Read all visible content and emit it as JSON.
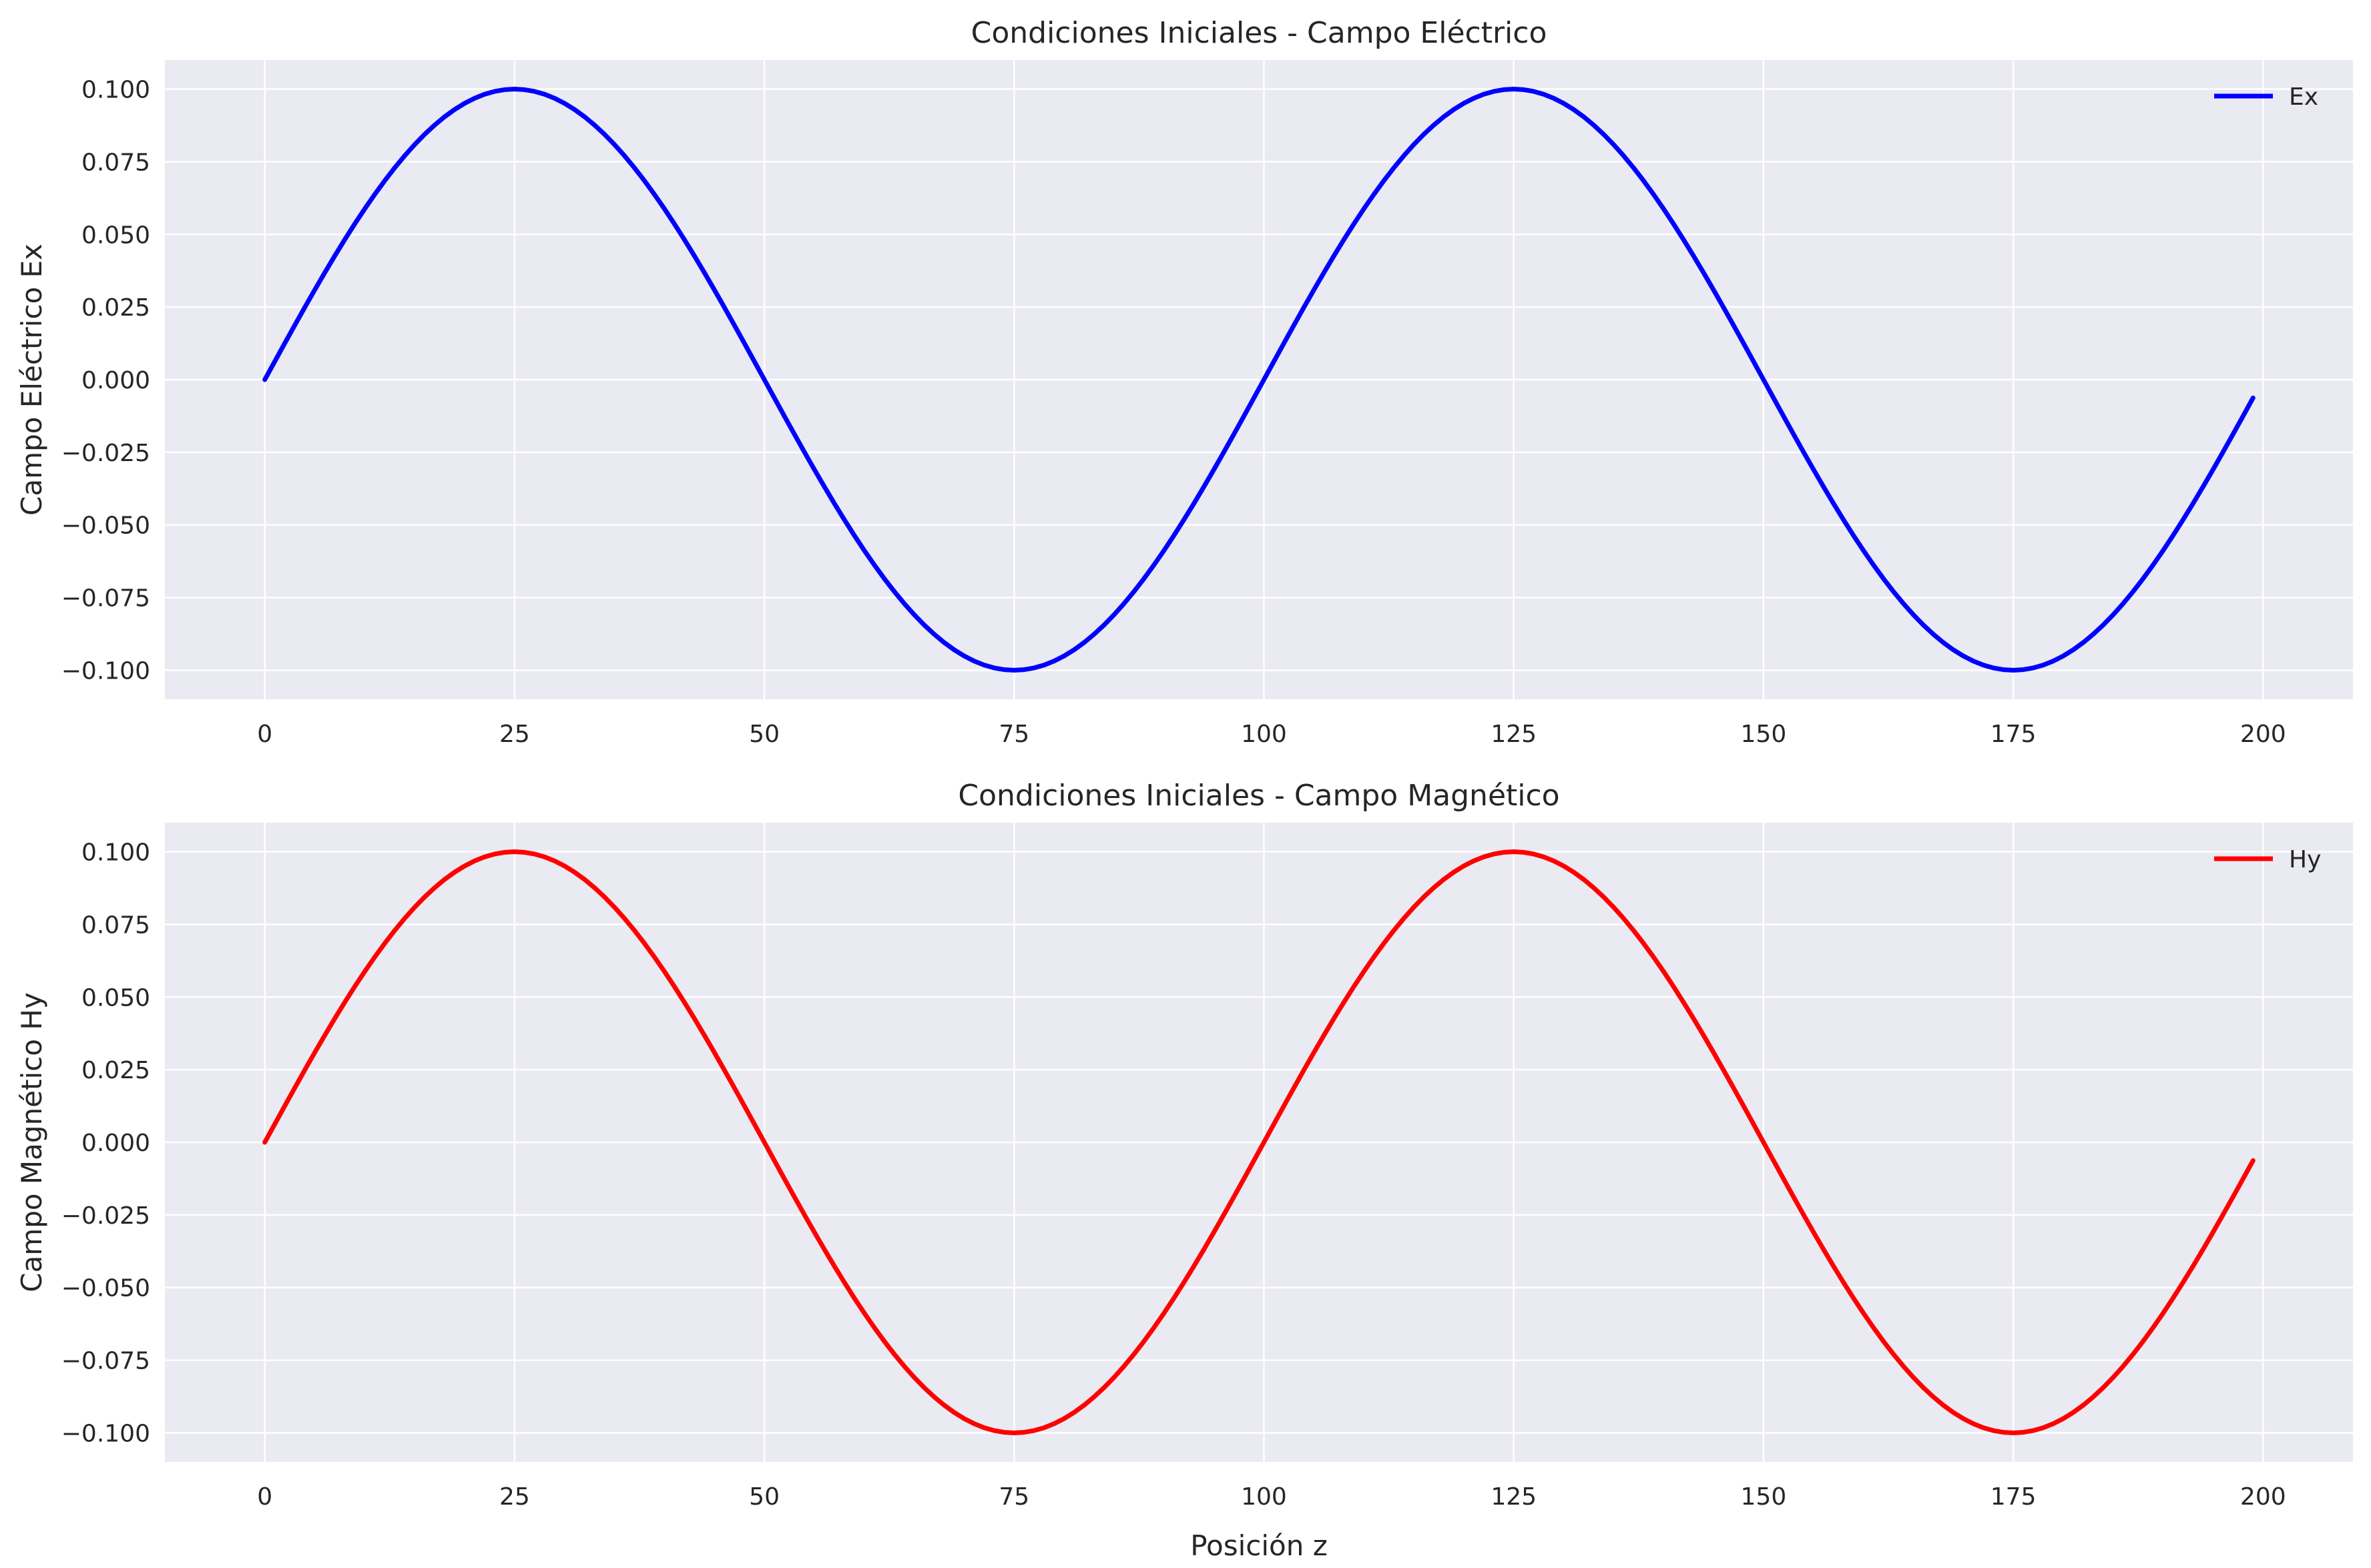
{
  "figure": {
    "background": "#ffffff",
    "axes_facecolor": "#eaeaf2",
    "grid_color": "#ffffff",
    "text_color": "#262626"
  },
  "chart_data": [
    {
      "type": "line",
      "title": "Condiciones Iniciales - Campo Eléctrico",
      "xlabel": "",
      "ylabel": "Campo Eléctrico Ex",
      "xlim": [
        -10,
        209
      ],
      "ylim": [
        -0.11,
        0.11
      ],
      "xticks": [
        0,
        25,
        50,
        75,
        100,
        125,
        150,
        175,
        200
      ],
      "xtick_labels": [
        "0",
        "25",
        "50",
        "75",
        "100",
        "125",
        "150",
        "175",
        "200"
      ],
      "yticks": [
        0.1,
        0.075,
        0.05,
        0.025,
        0.0,
        -0.025,
        -0.05,
        -0.075,
        -0.1
      ],
      "ytick_labels": [
        "0.100",
        "0.075",
        "0.050",
        "0.025",
        "0.000",
        "−0.025",
        "−0.050",
        "−0.075",
        "−0.100"
      ],
      "grid": true,
      "legend_position": "top-right",
      "series": [
        {
          "name": "Ex",
          "color": "#0000ff",
          "function": "0.1*sin(2*pi*z/100)",
          "x_start": 0,
          "x_end": 199,
          "x_step": 1
        }
      ]
    },
    {
      "type": "line",
      "title": "Condiciones Iniciales - Campo Magnético",
      "xlabel": "Posición z",
      "ylabel": "Campo Magnético Hy",
      "xlim": [
        -10,
        209
      ],
      "ylim": [
        -0.11,
        0.11
      ],
      "xticks": [
        0,
        25,
        50,
        75,
        100,
        125,
        150,
        175,
        200
      ],
      "xtick_labels": [
        "0",
        "25",
        "50",
        "75",
        "100",
        "125",
        "150",
        "175",
        "200"
      ],
      "yticks": [
        0.1,
        0.075,
        0.05,
        0.025,
        0.0,
        -0.025,
        -0.05,
        -0.075,
        -0.1
      ],
      "ytick_labels": [
        "0.100",
        "0.075",
        "0.050",
        "0.025",
        "0.000",
        "−0.025",
        "−0.050",
        "−0.075",
        "−0.100"
      ],
      "grid": true,
      "legend_position": "top-right",
      "series": [
        {
          "name": "Hy",
          "color": "#ff0000",
          "function": "0.1*sin(2*pi*z/100)",
          "x_start": 0,
          "x_end": 199,
          "x_step": 1
        }
      ]
    }
  ]
}
